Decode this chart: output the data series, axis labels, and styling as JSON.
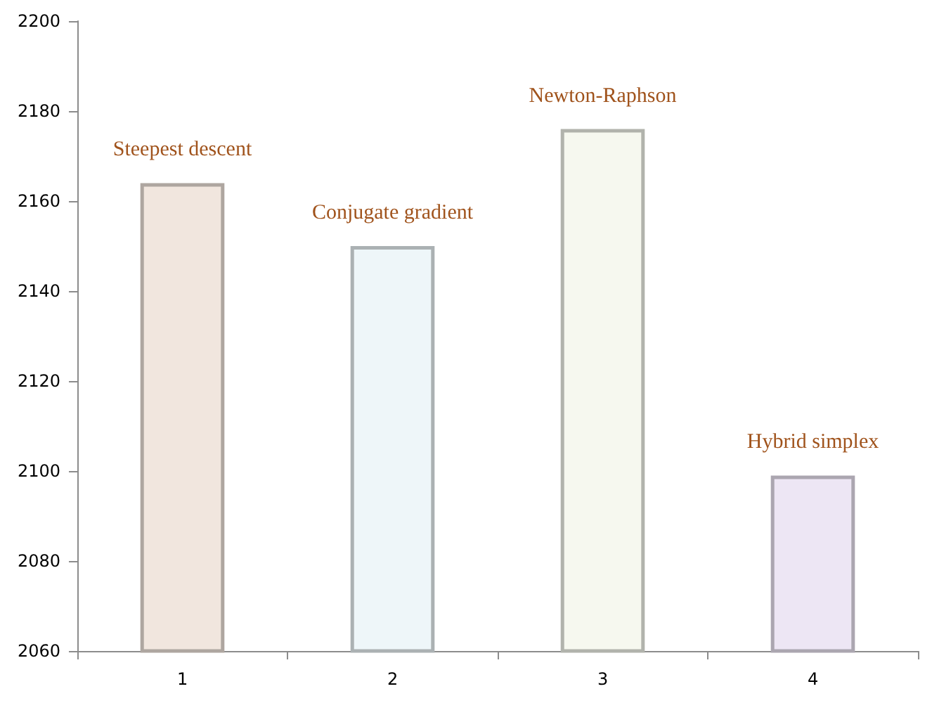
{
  "chart_data": {
    "type": "bar",
    "categories": [
      "1",
      "2",
      "3",
      "4"
    ],
    "values": [
      2164,
      2150,
      2176,
      2099
    ],
    "colors": [
      "#f1e6de",
      "#eef6f9",
      "#f6f8ef",
      "#ede6f4"
    ],
    "ylim": [
      2060,
      2200
    ],
    "yticks": [
      2060,
      2080,
      2100,
      2120,
      2140,
      2160,
      2180,
      2200
    ],
    "grid": false,
    "annotations": [
      {
        "text": "Steepest descent",
        "x": "1",
        "y": 2164
      },
      {
        "text": "Conjugate gradient",
        "x": "2",
        "y": 2150
      },
      {
        "text": "Newton-Raphson",
        "x": "3",
        "y": 2176
      },
      {
        "text": "Hybrid simplex",
        "x": "4",
        "y": 2099
      }
    ]
  }
}
